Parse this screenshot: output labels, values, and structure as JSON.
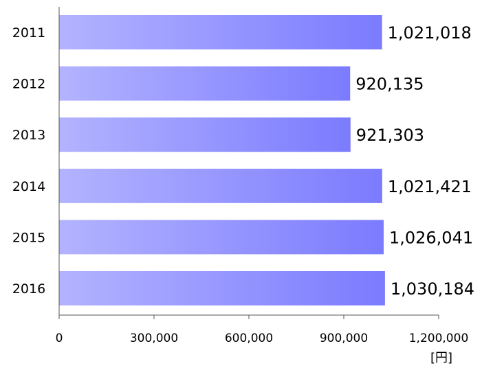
{
  "chart_data": {
    "type": "bar",
    "orientation": "horizontal",
    "categories": [
      "2011",
      "2012",
      "2013",
      "2014",
      "2015",
      "2016"
    ],
    "values": [
      1021018,
      920135,
      921303,
      1021421,
      1026041,
      1030184
    ],
    "data_labels": [
      "1,021,018",
      "920,135",
      "921,303",
      "1,021,421",
      "1,026,041",
      "1,030,184"
    ],
    "x_ticks": [
      0,
      300000,
      600000,
      900000,
      1200000
    ],
    "x_tick_labels": [
      "0",
      "300,000",
      "600,000",
      "900,000",
      "1,200,000"
    ],
    "xlim": [
      0,
      1200000
    ],
    "unit_label": "[円]",
    "grid": false,
    "bar_gradient": [
      "#b3b3ff",
      "#7b7bff"
    ]
  }
}
